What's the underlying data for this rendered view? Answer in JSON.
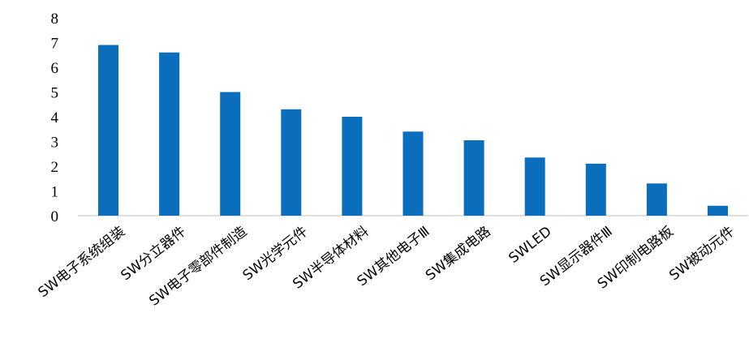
{
  "chart_data": {
    "type": "bar",
    "title": "",
    "xlabel": "",
    "ylabel": "",
    "categories": [
      "SW电子系统组装",
      "SW分立器件",
      "SW电子零部件制造",
      "SW光学元件",
      "SW半导体材料",
      "SW其他电子Ⅲ",
      "SW集成电路",
      "SWLED",
      "SW显示器件Ⅲ",
      "SW印制电路板",
      "SW被动元件"
    ],
    "values": [
      6.9,
      6.6,
      5.0,
      4.3,
      4.0,
      3.4,
      3.05,
      2.35,
      2.1,
      1.3,
      0.4
    ],
    "ylim": [
      0,
      8
    ],
    "yticks": [
      "0",
      "1",
      "2",
      "3",
      "4",
      "5",
      "6",
      "7",
      "8"
    ],
    "bar_color": "#0a6ebd",
    "axis_color": "#bfbfbf",
    "grid": false,
    "legend": false
  }
}
